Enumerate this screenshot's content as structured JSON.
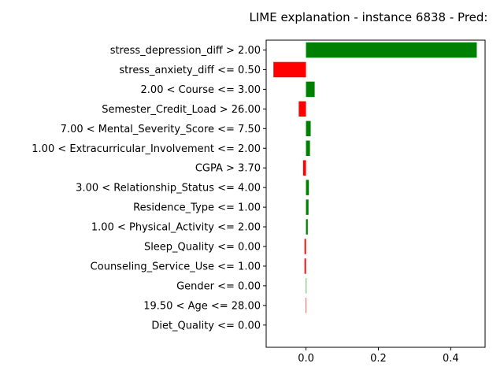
{
  "chart_data": {
    "type": "bar",
    "orientation": "horizontal",
    "title": "LIME explanation - instance 6838 - Pred:",
    "xlabel": "",
    "ylabel": "",
    "xlim": [
      -0.11,
      0.495
    ],
    "xticks": [
      0.0,
      0.2,
      0.4
    ],
    "xtick_labels": [
      "0.0",
      "0.2",
      "0.4"
    ],
    "grid": false,
    "positive_color": "#008000",
    "negative_color": "#ff0000",
    "categories": [
      "stress_depression_diff > 2.00",
      "stress_anxiety_diff <= 0.50",
      "2.00 < Course <= 3.00",
      "Semester_Credit_Load > 26.00",
      "7.00 < Mental_Severity_Score <= 7.50",
      "1.00 < Extracurricular_Involvement <= 2.00",
      "CGPA > 3.70",
      "3.00 < Relationship_Status <= 4.00",
      "Residence_Type <= 1.00",
      "1.00 < Physical_Activity <= 2.00",
      "Sleep_Quality <= 0.00",
      "Counseling_Service_Use <= 1.00",
      "Gender <= 0.00",
      "19.50 < Age <= 28.00",
      "Diet_Quality <= 0.00"
    ],
    "values": [
      0.472,
      -0.09,
      0.024,
      -0.02,
      0.013,
      0.011,
      -0.008,
      0.008,
      0.007,
      0.005,
      -0.004,
      -0.004,
      0.001,
      -0.001,
      0.0
    ]
  }
}
